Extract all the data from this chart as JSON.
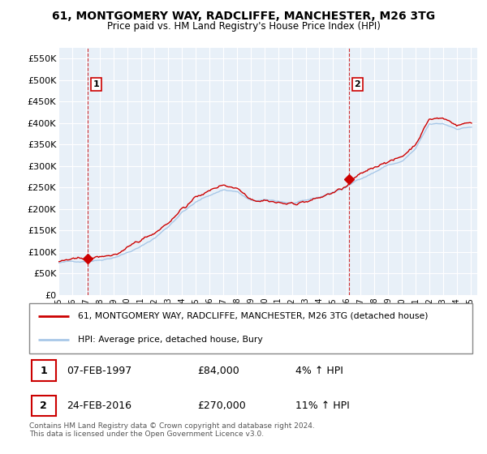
{
  "title": "61, MONTGOMERY WAY, RADCLIFFE, MANCHESTER, M26 3TG",
  "subtitle": "Price paid vs. HM Land Registry's House Price Index (HPI)",
  "ylim": [
    0,
    575000
  ],
  "yticks": [
    0,
    50000,
    100000,
    150000,
    200000,
    250000,
    300000,
    350000,
    400000,
    450000,
    500000,
    550000
  ],
  "ytick_labels": [
    "£0",
    "£50K",
    "£100K",
    "£150K",
    "£200K",
    "£250K",
    "£300K",
    "£350K",
    "£400K",
    "£450K",
    "£500K",
    "£550K"
  ],
  "sale1_year": 1997.1,
  "sale1_price": 84000,
  "sale1_label": "1",
  "sale2_year": 2016.15,
  "sale2_price": 270000,
  "sale2_label": "2",
  "hpi_color": "#a8c8e8",
  "sale_color": "#cc0000",
  "bg_color": "#e8f0f8",
  "grid_color": "#ffffff",
  "legend_entry1": "61, MONTGOMERY WAY, RADCLIFFE, MANCHESTER, M26 3TG (detached house)",
  "legend_entry2": "HPI: Average price, detached house, Bury",
  "table_row1_num": "1",
  "table_row1_date": "07-FEB-1997",
  "table_row1_price": "£84,000",
  "table_row1_hpi": "4% ↑ HPI",
  "table_row2_num": "2",
  "table_row2_date": "24-FEB-2016",
  "table_row2_price": "£270,000",
  "table_row2_hpi": "11% ↑ HPI",
  "footer": "Contains HM Land Registry data © Crown copyright and database right 2024.\nThis data is licensed under the Open Government Licence v3.0."
}
